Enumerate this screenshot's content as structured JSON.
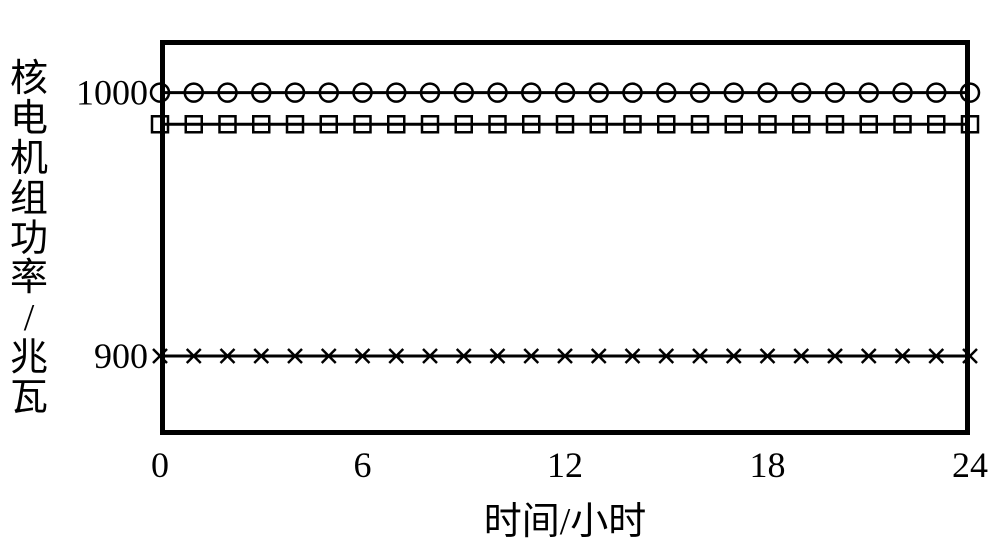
{
  "chart": {
    "type": "line",
    "background_color": "#ffffff",
    "border_color": "#000000",
    "border_width": 5,
    "xlim": [
      0,
      24
    ],
    "ylim": [
      870,
      1020
    ],
    "xticks": [
      0,
      6,
      12,
      18,
      24
    ],
    "yticks": [
      900,
      1000
    ],
    "xticklabels": [
      "0",
      "6",
      "12",
      "18",
      "24"
    ],
    "yticklabels": [
      "900",
      "1000"
    ],
    "xlabel": "时间/小时",
    "ylabel": "核电机组功率/兆瓦",
    "ylabel_chars": [
      "核",
      "电",
      "机",
      "组",
      "功",
      "率",
      "/",
      "兆",
      "瓦"
    ],
    "label_fontsize": 38,
    "tick_fontsize": 36,
    "grid": false,
    "x_points": [
      0,
      1,
      2,
      3,
      4,
      5,
      6,
      7,
      8,
      9,
      10,
      11,
      12,
      13,
      14,
      15,
      16,
      17,
      18,
      19,
      20,
      21,
      22,
      23,
      24
    ],
    "series": [
      {
        "name": "series-circle",
        "marker": "circle",
        "marker_size": 9,
        "line_width": 3,
        "color": "#000000",
        "y": [
          1000,
          1000,
          1000,
          1000,
          1000,
          1000,
          1000,
          1000,
          1000,
          1000,
          1000,
          1000,
          1000,
          1000,
          1000,
          1000,
          1000,
          1000,
          1000,
          1000,
          1000,
          1000,
          1000,
          1000,
          1000
        ]
      },
      {
        "name": "series-square",
        "marker": "square",
        "marker_size": 8,
        "line_width": 3,
        "color": "#000000",
        "y": [
          988,
          988,
          988,
          988,
          988,
          988,
          988,
          988,
          988,
          988,
          988,
          988,
          988,
          988,
          988,
          988,
          988,
          988,
          988,
          988,
          988,
          988,
          988,
          988,
          988
        ]
      },
      {
        "name": "series-x",
        "marker": "x",
        "marker_size": 7,
        "line_width": 3,
        "color": "#000000",
        "y": [
          900,
          900,
          900,
          900,
          900,
          900,
          900,
          900,
          900,
          900,
          900,
          900,
          900,
          900,
          900,
          900,
          900,
          900,
          900,
          900,
          900,
          900,
          900,
          900,
          900
        ]
      }
    ]
  }
}
